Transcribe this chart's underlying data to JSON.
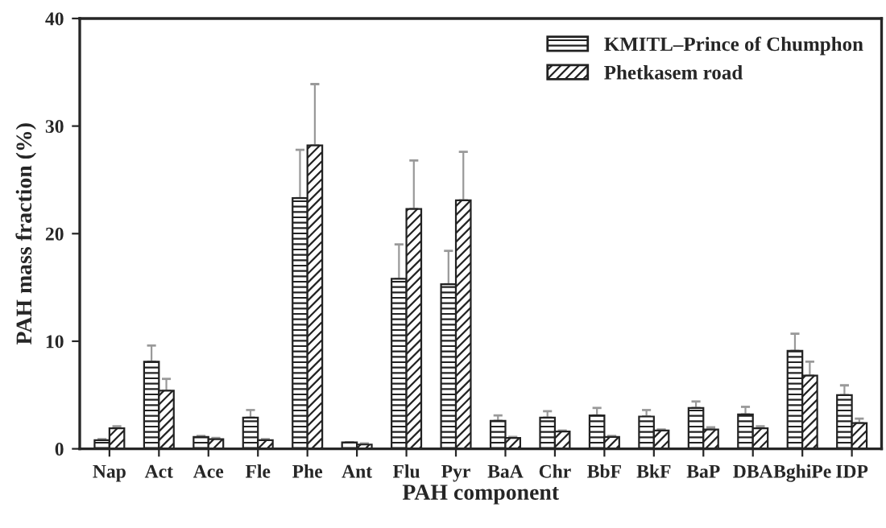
{
  "chart_data": {
    "type": "bar",
    "xlabel": "PAH component",
    "ylabel": "PAH mass fraction (%)",
    "categories": [
      "Nap",
      "Act",
      "Ace",
      "Fle",
      "Phe",
      "Ant",
      "Flu",
      "Pyr",
      "BaA",
      "Chr",
      "BbF",
      "BkF",
      "BaP",
      "DBA",
      "BghiPe",
      "IDP"
    ],
    "series": [
      {
        "name": "KMITL–Prince of Chumphon",
        "color": "#222222",
        "values": [
          0.8,
          8.1,
          1.1,
          2.9,
          23.3,
          0.6,
          15.8,
          15.3,
          2.6,
          2.9,
          3.1,
          3.0,
          3.8,
          3.2,
          9.1,
          5.0
        ],
        "errors": [
          [
            0.8,
            0.9
          ],
          [
            8.1,
            9.6
          ],
          [
            1.1,
            1.2
          ],
          [
            2.9,
            3.6
          ],
          [
            23.3,
            27.8
          ],
          [
            0.6,
            0.6
          ],
          [
            15.8,
            19.0
          ],
          [
            15.3,
            18.4
          ],
          [
            2.6,
            3.1
          ],
          [
            2.9,
            3.5
          ],
          [
            3.1,
            3.8
          ],
          [
            3.0,
            3.6
          ],
          [
            3.8,
            4.4
          ],
          [
            3.2,
            3.9
          ],
          [
            9.1,
            10.7
          ],
          [
            5.0,
            5.9
          ]
        ]
      },
      {
        "name": "Phetkasem road",
        "color": "#222222",
        "values": [
          1.9,
          5.4,
          0.9,
          0.8,
          28.2,
          0.4,
          22.3,
          23.1,
          1.0,
          1.6,
          1.1,
          1.7,
          1.8,
          1.9,
          6.8,
          2.4
        ],
        "errors": [
          [
            1.9,
            2.1
          ],
          [
            5.4,
            6.5
          ],
          [
            0.9,
            1.0
          ],
          [
            0.8,
            0.9
          ],
          [
            28.2,
            33.9
          ],
          [
            0.4,
            0.5
          ],
          [
            22.3,
            26.8
          ],
          [
            23.1,
            27.6
          ],
          [
            1.0,
            1.1
          ],
          [
            1.6,
            1.7
          ],
          [
            1.1,
            1.2
          ],
          [
            1.7,
            1.8
          ],
          [
            1.8,
            2.0
          ],
          [
            1.9,
            2.1
          ],
          [
            6.8,
            8.1
          ],
          [
            2.4,
            2.8
          ]
        ]
      }
    ],
    "ylim": [
      0,
      40
    ],
    "yticks": [
      0,
      10,
      20,
      30,
      40
    ],
    "grid": false,
    "legend": "top right"
  }
}
